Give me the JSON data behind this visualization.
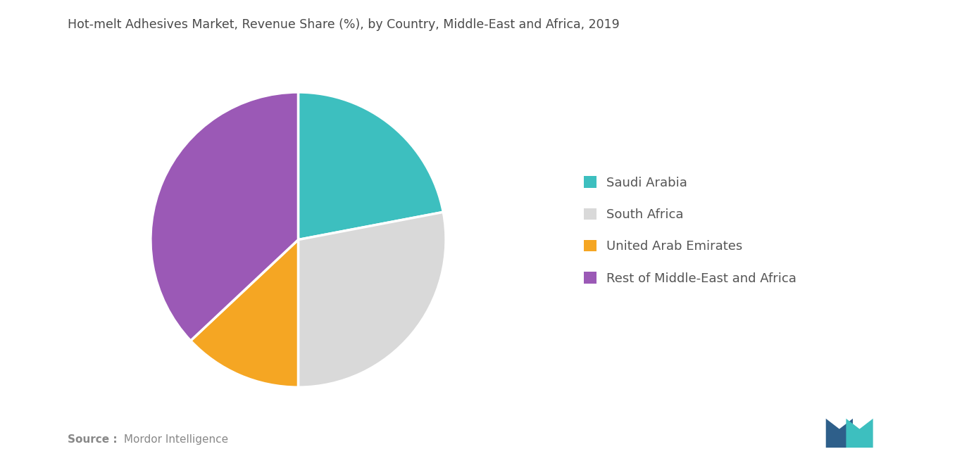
{
  "title": "Hot-melt Adhesives Market, Revenue Share (%), by Country, Middle-East and Africa, 2019",
  "slices": [
    {
      "label": "Saudi Arabia",
      "value": 22,
      "color": "#3dbfbf"
    },
    {
      "label": "South Africa",
      "value": 28,
      "color": "#d9d9d9"
    },
    {
      "label": "United Arab Emirates",
      "value": 13,
      "color": "#f5a623"
    },
    {
      "label": "Rest of Middle-East and Africa",
      "value": 37,
      "color": "#9b59b6"
    }
  ],
  "start_angle": 90,
  "legend_fontsize": 13,
  "title_fontsize": 12.5,
  "source_bold": "Source :",
  "source_regular": " Mordor Intelligence",
  "background_color": "#ffffff"
}
